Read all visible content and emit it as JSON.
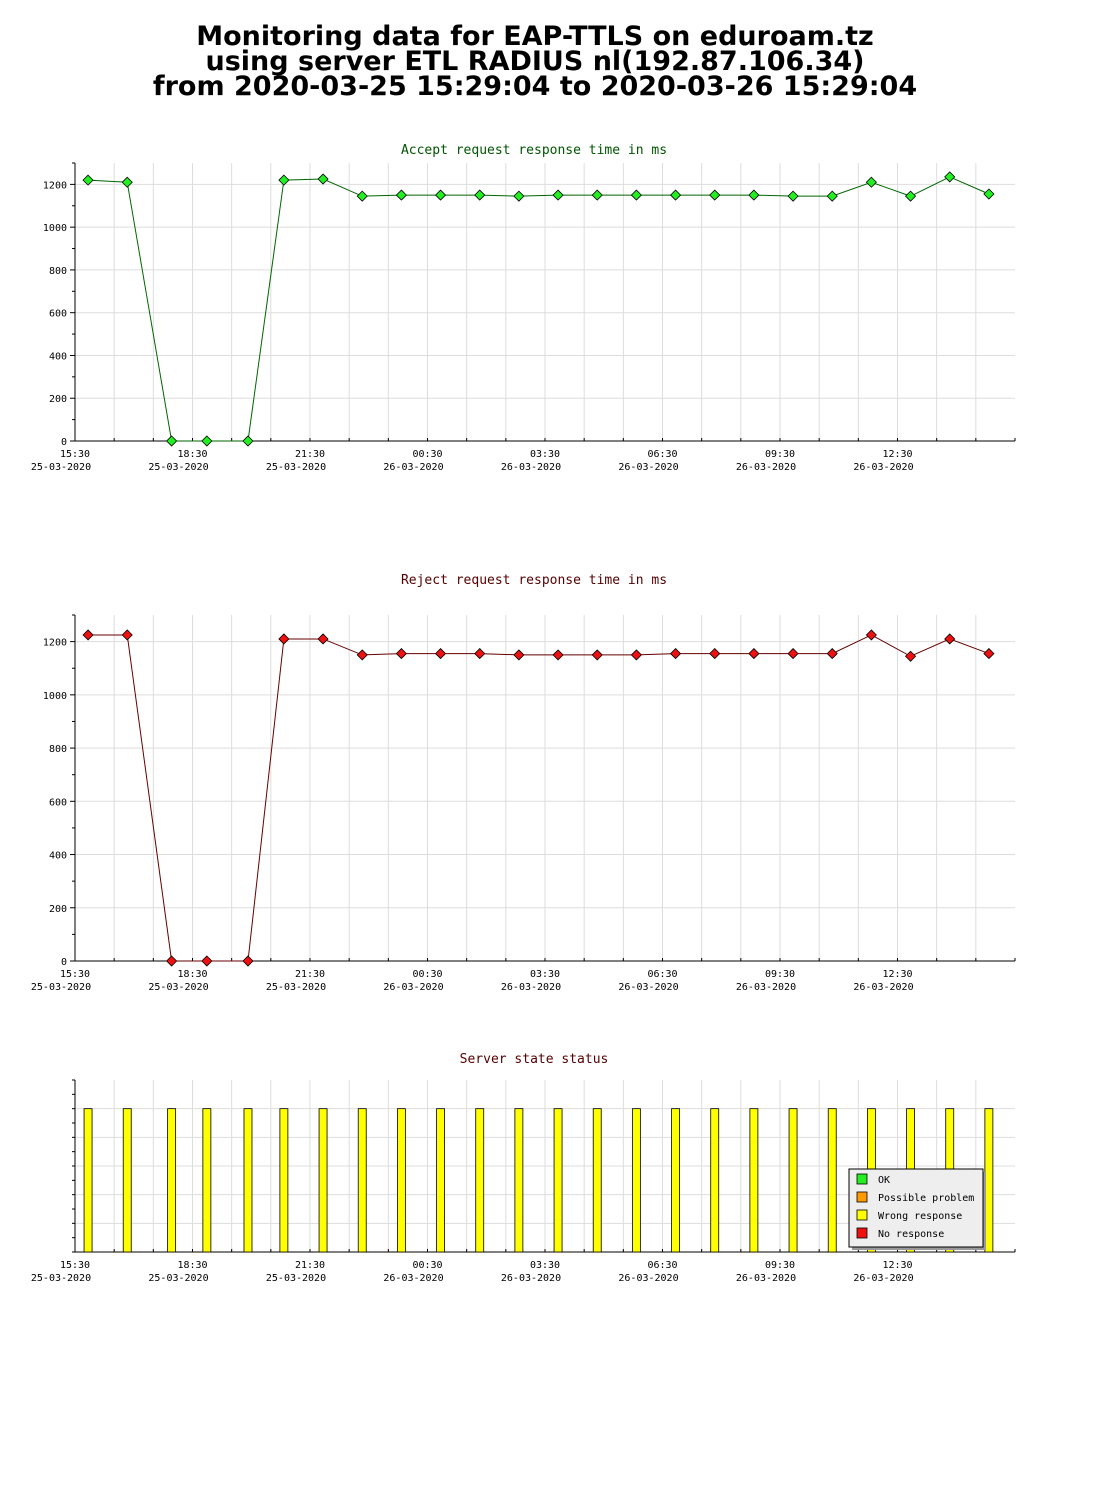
{
  "page_title": {
    "line1": "Monitoring data for EAP-TTLS on eduroam.tz",
    "line2": "using server ETL RADIUS nl(192.87.106.34)",
    "line3": "from 2020-03-25 15:29:04 to 2020-03-26 15:29:04"
  },
  "colors": {
    "accept_marker": "#22ee22",
    "accept_line": "#006600",
    "reject_marker": "#ee1111",
    "reject_line": "#660000",
    "status_bar": "#ffff00",
    "grid": "#dddddd",
    "ok": "#22ee22",
    "possible_problem": "#ff9900",
    "wrong_response": "#ffff00",
    "no_response": "#ee1111"
  },
  "chart_data": [
    {
      "type": "line",
      "title": "Accept request response time in ms",
      "title_color": "#005500",
      "xlabel": "",
      "ylabel": "",
      "ylim": [
        0,
        1300
      ],
      "yticks": [
        0,
        200,
        400,
        600,
        800,
        1000,
        1200
      ],
      "grid": true,
      "x_tick_labels": [
        {
          "time": "15:30",
          "date": "25-03-2020"
        },
        {
          "time": "18:30",
          "date": "25-03-2020"
        },
        {
          "time": "21:30",
          "date": "25-03-2020"
        },
        {
          "time": "00:30",
          "date": "26-03-2020"
        },
        {
          "time": "03:30",
          "date": "26-03-2020"
        },
        {
          "time": "06:30",
          "date": "26-03-2020"
        },
        {
          "time": "09:30",
          "date": "26-03-2020"
        },
        {
          "time": "12:30",
          "date": "26-03-2020"
        }
      ],
      "x": [
        "15:50",
        "16:50",
        "17:58",
        "18:52",
        "19:55",
        "20:50",
        "21:50",
        "22:50",
        "23:50",
        "00:50",
        "01:50",
        "02:50",
        "03:50",
        "04:50",
        "05:50",
        "06:50",
        "07:50",
        "08:50",
        "09:50",
        "10:50",
        "11:50",
        "12:50",
        "13:50",
        "14:50"
      ],
      "values": [
        1220,
        1210,
        0,
        0,
        0,
        1220,
        1225,
        1145,
        1150,
        1150,
        1150,
        1145,
        1150,
        1150,
        1150,
        1150,
        1150,
        1150,
        1145,
        1145,
        1210,
        1145,
        1235,
        1155
      ]
    },
    {
      "type": "line",
      "title": "Reject request response time in ms",
      "title_color": "#550000",
      "xlabel": "",
      "ylabel": "",
      "ylim": [
        0,
        1300
      ],
      "yticks": [
        0,
        200,
        400,
        600,
        800,
        1000,
        1200
      ],
      "grid": true,
      "x_tick_labels": [
        {
          "time": "15:30",
          "date": "25-03-2020"
        },
        {
          "time": "18:30",
          "date": "25-03-2020"
        },
        {
          "time": "21:30",
          "date": "25-03-2020"
        },
        {
          "time": "00:30",
          "date": "26-03-2020"
        },
        {
          "time": "03:30",
          "date": "26-03-2020"
        },
        {
          "time": "06:30",
          "date": "26-03-2020"
        },
        {
          "time": "09:30",
          "date": "26-03-2020"
        },
        {
          "time": "12:30",
          "date": "26-03-2020"
        }
      ],
      "x": [
        "15:50",
        "16:50",
        "17:58",
        "18:52",
        "19:55",
        "20:50",
        "21:50",
        "22:50",
        "23:50",
        "00:50",
        "01:50",
        "02:50",
        "03:50",
        "04:50",
        "05:50",
        "06:50",
        "07:50",
        "08:50",
        "09:50",
        "10:50",
        "11:50",
        "12:50",
        "13:50",
        "14:50"
      ],
      "values": [
        1225,
        1225,
        0,
        0,
        0,
        1210,
        1210,
        1150,
        1155,
        1155,
        1155,
        1150,
        1150,
        1150,
        1150,
        1155,
        1155,
        1155,
        1155,
        1155,
        1225,
        1145,
        1210,
        1155
      ]
    },
    {
      "type": "bar",
      "title": "Server state status",
      "title_color": "#550000",
      "grid": true,
      "x_tick_labels": [
        {
          "time": "15:30",
          "date": "25-03-2020"
        },
        {
          "time": "18:30",
          "date": "25-03-2020"
        },
        {
          "time": "21:30",
          "date": "25-03-2020"
        },
        {
          "time": "00:30",
          "date": "26-03-2020"
        },
        {
          "time": "03:30",
          "date": "26-03-2020"
        },
        {
          "time": "06:30",
          "date": "26-03-2020"
        },
        {
          "time": "09:30",
          "date": "26-03-2020"
        },
        {
          "time": "12:30",
          "date": "26-03-2020"
        }
      ],
      "x": [
        "15:50",
        "16:50",
        "17:58",
        "18:52",
        "19:55",
        "20:50",
        "21:50",
        "22:50",
        "23:50",
        "00:50",
        "01:50",
        "02:50",
        "03:50",
        "04:50",
        "05:50",
        "06:50",
        "07:50",
        "08:50",
        "09:50",
        "10:50",
        "11:50",
        "12:50",
        "13:50",
        "14:50"
      ],
      "states": [
        "Wrong response",
        "Wrong response",
        "Wrong response",
        "Wrong response",
        "Wrong response",
        "Wrong response",
        "Wrong response",
        "Wrong response",
        "Wrong response",
        "Wrong response",
        "Wrong response",
        "Wrong response",
        "Wrong response",
        "Wrong response",
        "Wrong response",
        "Wrong response",
        "Wrong response",
        "Wrong response",
        "Wrong response",
        "Wrong response",
        "Wrong response",
        "Wrong response",
        "Wrong response",
        "Wrong response"
      ],
      "legend_position": "bottom-right",
      "legend": [
        {
          "label": "OK",
          "color": "#22ee22"
        },
        {
          "label": "Possible problem",
          "color": "#ff9900"
        },
        {
          "label": "Wrong response",
          "color": "#ffff00"
        },
        {
          "label": "No response",
          "color": "#ee1111"
        }
      ]
    }
  ]
}
